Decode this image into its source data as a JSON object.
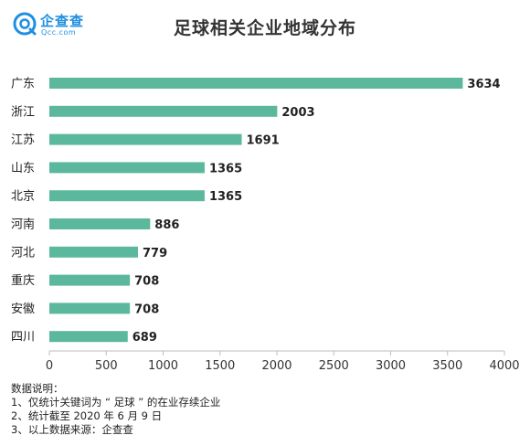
{
  "brand": {
    "name": "企查查",
    "url": "Qcc.com",
    "color": "#1f8fe0"
  },
  "chart_data": {
    "type": "bar",
    "orientation": "horizontal",
    "title": "足球相关企业地域分布",
    "categories": [
      "广东",
      "浙江",
      "江苏",
      "山东",
      "北京",
      "河南",
      "河北",
      "重庆",
      "安徽",
      "四川"
    ],
    "values": [
      3634,
      2003,
      1691,
      1365,
      1365,
      886,
      779,
      708,
      708,
      689
    ],
    "xlim": [
      0,
      4000
    ],
    "xticks": [
      0,
      500,
      1000,
      1500,
      2000,
      2500,
      3000,
      3500,
      4000
    ],
    "bar_color": "#5cb89c",
    "grid": false,
    "data_labels": true
  },
  "notes": {
    "heading": "数据说明：",
    "lines": [
      "1、仅统计关键词为 “ 足球 ” 的在业存续企业",
      "2、统计截至 2020 年 6 月 9 日",
      "3、以上数据来源：企查查"
    ]
  }
}
